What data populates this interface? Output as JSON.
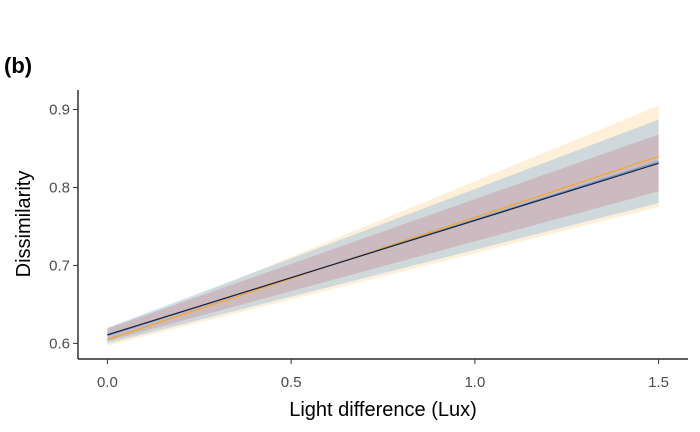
{
  "panel_label": "(b)",
  "chart_data": {
    "type": "line",
    "title": "",
    "xlabel": "Light difference (Lux)",
    "ylabel": "Dissimilarity",
    "xlim": [
      -0.08,
      1.58
    ],
    "ylim": [
      0.58,
      0.925
    ],
    "x_ticks": [
      0.0,
      0.5,
      1.0,
      1.5
    ],
    "x_tick_labels": [
      "0.0",
      "0.5",
      "1.0",
      "1.5"
    ],
    "y_ticks": [
      0.6,
      0.7,
      0.8,
      0.9
    ],
    "y_tick_labels": [
      "0.6",
      "0.7",
      "0.8",
      "0.9"
    ],
    "grid": false,
    "legend": "none",
    "series": [
      {
        "color": "#f5a623",
        "band_color": "#fde4b8",
        "x": [
          0.0,
          1.5
        ],
        "y": [
          0.605,
          0.84
        ],
        "lower": [
          0.597,
          0.775
        ],
        "upper": [
          0.614,
          0.905
        ]
      },
      {
        "color": "#5b9bd5",
        "band_color": "#a8c6e0",
        "x": [
          0.0,
          1.5
        ],
        "y": [
          0.61,
          0.833
        ],
        "lower": [
          0.6,
          0.78
        ],
        "upper": [
          0.62,
          0.887
        ]
      },
      {
        "color": "#1f1f3a",
        "band_color": "#c8a0a8",
        "x": [
          0.0,
          1.5
        ],
        "y": [
          0.611,
          0.831
        ],
        "lower": [
          0.603,
          0.795
        ],
        "upper": [
          0.619,
          0.868
        ]
      }
    ]
  }
}
